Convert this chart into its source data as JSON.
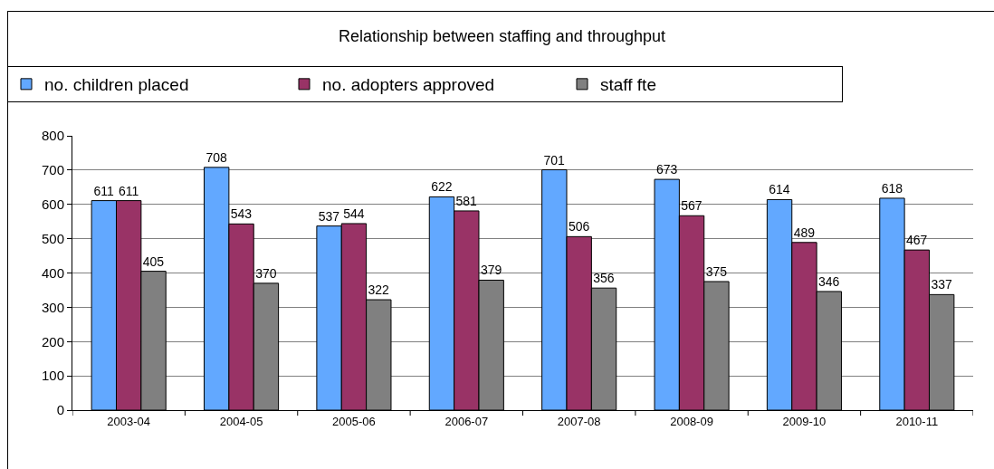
{
  "chart_data": {
    "type": "bar",
    "title": "Relationship between staffing and throughput",
    "categories": [
      "2003-04",
      "2004-05",
      "2005-06",
      "2006-07",
      "2007-08",
      "2008-09",
      "2009-10",
      "2010-11"
    ],
    "series": [
      {
        "name": "no. children placed",
        "color": "#62a8ff",
        "values": [
          611,
          708,
          537,
          622,
          701,
          673,
          614,
          618
        ]
      },
      {
        "name": "no. adopters approved",
        "color": "#993366",
        "values": [
          611,
          543,
          544,
          581,
          506,
          567,
          489,
          467
        ]
      },
      {
        "name": "staff fte",
        "color": "#808080",
        "values": [
          405,
          370,
          322,
          379,
          356,
          375,
          346,
          337
        ]
      }
    ],
    "ylim": [
      0,
      800
    ],
    "yticks": [
      0,
      100,
      200,
      300,
      400,
      500,
      600,
      700,
      800
    ],
    "grid": "y",
    "legend": "top",
    "data_labels": true
  }
}
